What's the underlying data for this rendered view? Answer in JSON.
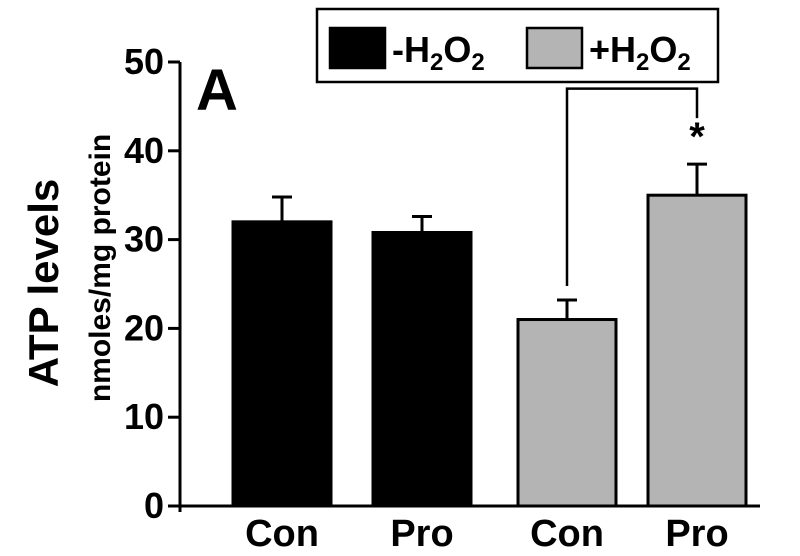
{
  "chart_data": {
    "type": "bar",
    "panel_label": "A",
    "ylabel": "ATP levels",
    "ylabel_unit": "nmoles/mg protein",
    "ylim": [
      0,
      50
    ],
    "yticks": [
      0,
      10,
      20,
      30,
      40,
      50
    ],
    "categories": [
      "Con",
      "Pro",
      "Con",
      "Pro"
    ],
    "bars": [
      {
        "category": "Con",
        "series": "-H2O2",
        "value": 32,
        "error": 2.8,
        "color": "#000000"
      },
      {
        "category": "Pro",
        "series": "-H2O2",
        "value": 30.8,
        "error": 1.8,
        "color": "#000000"
      },
      {
        "category": "Con",
        "series": "+H2O2",
        "value": 21,
        "error": 2.2,
        "color": "#b4b4b4"
      },
      {
        "category": "Pro",
        "series": "+H2O2",
        "value": 35,
        "error": 3.5,
        "color": "#b4b4b4"
      }
    ],
    "legend": {
      "placement": "top-right",
      "entries": [
        {
          "sign": "-",
          "base": "H",
          "sub1": "2",
          "mid": "O",
          "sub2": "2",
          "color": "#000000"
        },
        {
          "sign": "+",
          "base": "H",
          "sub1": "2",
          "mid": "O",
          "sub2": "2",
          "color": "#b4b4b4"
        }
      ]
    },
    "significance": {
      "from_bar": 2,
      "to_bar": 3,
      "bracket_y": 47,
      "marker": "*"
    },
    "grid": false
  }
}
